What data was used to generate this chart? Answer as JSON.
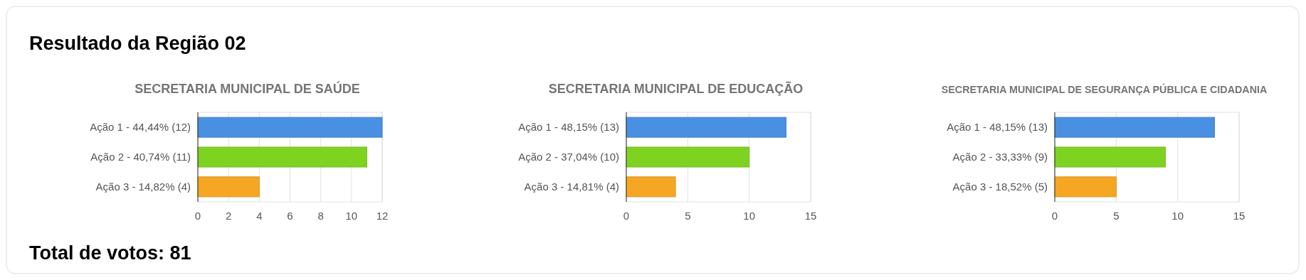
{
  "chart_data": [
    {
      "type": "other",
      "title": "Resultado da Região 02",
      "annotations": [
        "Total de votos: 81"
      ]
    },
    {
      "type": "bar",
      "orientation": "horizontal",
      "title": "SECRETARIA MUNICIPAL DE SAÚDE",
      "categories": [
        "Ação 1 - 44,44% (12)",
        "Ação 2 - 40,74% (11)",
        "Ação 3 - 14,82% (4)"
      ],
      "values": [
        12,
        11,
        4
      ],
      "colors": [
        "#4a90e2",
        "#7ed321",
        "#f5a623"
      ],
      "xlim": [
        0,
        12
      ],
      "xticks": [
        0,
        2,
        4,
        6,
        8,
        10,
        12
      ],
      "grid": "x"
    },
    {
      "type": "bar",
      "orientation": "horizontal",
      "title": "SECRETARIA MUNICIPAL DE EDUCAÇÃO",
      "categories": [
        "Ação 1 - 48,15% (13)",
        "Ação 2 - 37,04% (10)",
        "Ação 3 - 14,81% (4)"
      ],
      "values": [
        13,
        10,
        4
      ],
      "colors": [
        "#4a90e2",
        "#7ed321",
        "#f5a623"
      ],
      "xlim": [
        0,
        15
      ],
      "xticks": [
        0,
        5,
        10,
        15
      ],
      "grid": "x"
    },
    {
      "type": "bar",
      "orientation": "horizontal",
      "title": "SECRETARIA MUNICIPAL DE SEGURANÇA PÚBLICA E CIDADANIA",
      "categories": [
        "Ação 1 - 48,15% (13)",
        "Ação 2 - 33,33% (9)",
        "Ação 3 - 18,52% (5)"
      ],
      "values": [
        13,
        9,
        5
      ],
      "colors": [
        "#4a90e2",
        "#7ed321",
        "#f5a623"
      ],
      "xlim": [
        0,
        15
      ],
      "xticks": [
        0,
        5,
        10,
        15
      ],
      "grid": "x"
    }
  ]
}
